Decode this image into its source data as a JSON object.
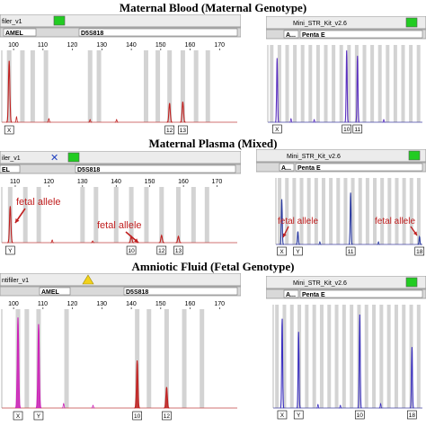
{
  "sections": [
    {
      "title": "Maternal Blood (Maternal Genotype)",
      "left": {
        "kit_label": "filer_v1",
        "status": "green",
        "markers": [
          "AMEL",
          "D5S818"
        ],
        "ticks": [
          "100",
          "110",
          "120",
          "130",
          "140",
          "150",
          "160",
          "170"
        ],
        "allele_labels": [
          "X",
          "12",
          "13"
        ],
        "annotations": []
      },
      "right": {
        "kit_label": "Mini_STR_Kit_v2.6",
        "status": "green",
        "markers": [
          "A...",
          "Penta E"
        ],
        "allele_labels": [
          "X",
          "10",
          "11"
        ],
        "annotations": []
      }
    },
    {
      "title": "Maternal Plasma (Mixed)",
      "left": {
        "kit_label": "iler_v1",
        "status": "blue-x",
        "markers": [
          "EL",
          "D5S818"
        ],
        "ticks": [
          "110",
          "120",
          "130",
          "140",
          "150",
          "160",
          "170"
        ],
        "allele_labels": [
          "Y",
          "10",
          "12",
          "13"
        ],
        "annotations": [
          "fetal allele",
          "fetal allele"
        ]
      },
      "right": {
        "kit_label": "Mini_STR_Kit_v2.6",
        "status": "green",
        "markers": [
          "A...",
          "Penta E"
        ],
        "allele_labels": [
          "X",
          "Y",
          "11",
          "18"
        ],
        "annotations": [
          "fetal allele",
          "fetal allele"
        ]
      }
    },
    {
      "title": "Amniotic Fluid (Fetal Genotype)",
      "left": {
        "kit_label": "ntifiler_v1",
        "status": "yellow-warning",
        "markers": [
          "AMEL",
          "D5S818"
        ],
        "ticks": [
          "100",
          "110",
          "120",
          "130",
          "140",
          "150",
          "160",
          "170"
        ],
        "allele_labels": [
          "X",
          "Y",
          "10",
          "12"
        ],
        "annotations": []
      },
      "right": {
        "kit_label": "Mini_STR_Kit_v2.6",
        "status": "green",
        "markers": [
          "A...",
          "Penta E"
        ],
        "allele_labels": [
          "X",
          "Y",
          "10",
          "18"
        ],
        "annotations": []
      }
    }
  ],
  "chart_data": [
    {
      "type": "line",
      "title": "Maternal Blood (Maternal Genotype)",
      "panel": "left",
      "xlim": [
        96,
        176
      ],
      "ylim": [
        0,
        100
      ],
      "color": "#c0201f",
      "peaks": [
        {
          "x": 98.5,
          "height": 90,
          "label": "X"
        },
        {
          "x": 153.0,
          "height": 28,
          "label": "12"
        },
        {
          "x": 157.5,
          "height": 30,
          "label": "13"
        }
      ],
      "bins": [
        98.5,
        103,
        106.5,
        111,
        126,
        129,
        145,
        149,
        153.0,
        157.5,
        162,
        166
      ]
    },
    {
      "type": "line",
      "title": "Maternal Blood (Maternal Genotype)",
      "panel": "right",
      "color": "#5a2fc0",
      "peaks": [
        {
          "pos": 0.06,
          "height": 85,
          "label": "X"
        },
        {
          "pos": 0.51,
          "height": 95,
          "label": "10"
        },
        {
          "pos": 0.58,
          "height": 88,
          "label": "11"
        }
      ]
    },
    {
      "type": "line",
      "title": "Maternal Plasma (Mixed)",
      "panel": "left",
      "xlim": [
        106,
        176
      ],
      "ylim": [
        0,
        100
      ],
      "color": "#c0201f",
      "peaks": [
        {
          "x": 108.5,
          "height": 70,
          "label": "Y"
        },
        {
          "x": 144.5,
          "height": 12,
          "label": "10"
        },
        {
          "x": 153.5,
          "height": 14,
          "label": "12"
        },
        {
          "x": 158.5,
          "height": 12,
          "label": "13"
        }
      ]
    },
    {
      "type": "line",
      "title": "Maternal Plasma (Mixed)",
      "panel": "right",
      "color": "#2a3aa0",
      "peaks": [
        {
          "pos": 0.04,
          "height": 70,
          "label": "X"
        },
        {
          "pos": 0.15,
          "height": 20,
          "label": "Y"
        },
        {
          "pos": 0.51,
          "height": 80,
          "label": "11"
        },
        {
          "pos": 0.98,
          "height": 12,
          "label": "18"
        }
      ]
    },
    {
      "type": "line",
      "title": "Amniotic Fluid (Fetal Genotype)",
      "panel": "left",
      "xlim": [
        96,
        176
      ],
      "ylim": [
        0,
        100
      ],
      "color": "#cc22b8",
      "peaks": [
        {
          "x": 101.5,
          "height": 95,
          "label": "X",
          "color": "#cc22b8"
        },
        {
          "x": 108.5,
          "height": 88,
          "label": "Y",
          "color": "#cc22b8"
        },
        {
          "x": 142.0,
          "height": 50,
          "label": "10",
          "color": "#c0201f"
        },
        {
          "x": 152.0,
          "height": 22,
          "label": "12",
          "color": "#c0201f"
        }
      ]
    },
    {
      "type": "line",
      "title": "Amniotic Fluid (Fetal Genotype)",
      "panel": "right",
      "color": "#3a2fc0",
      "peaks": [
        {
          "pos": 0.06,
          "height": 88,
          "label": "X"
        },
        {
          "pos": 0.17,
          "height": 75,
          "label": "Y"
        },
        {
          "pos": 0.58,
          "height": 92,
          "label": "10"
        },
        {
          "pos": 0.93,
          "height": 60,
          "label": "18"
        }
      ]
    }
  ]
}
